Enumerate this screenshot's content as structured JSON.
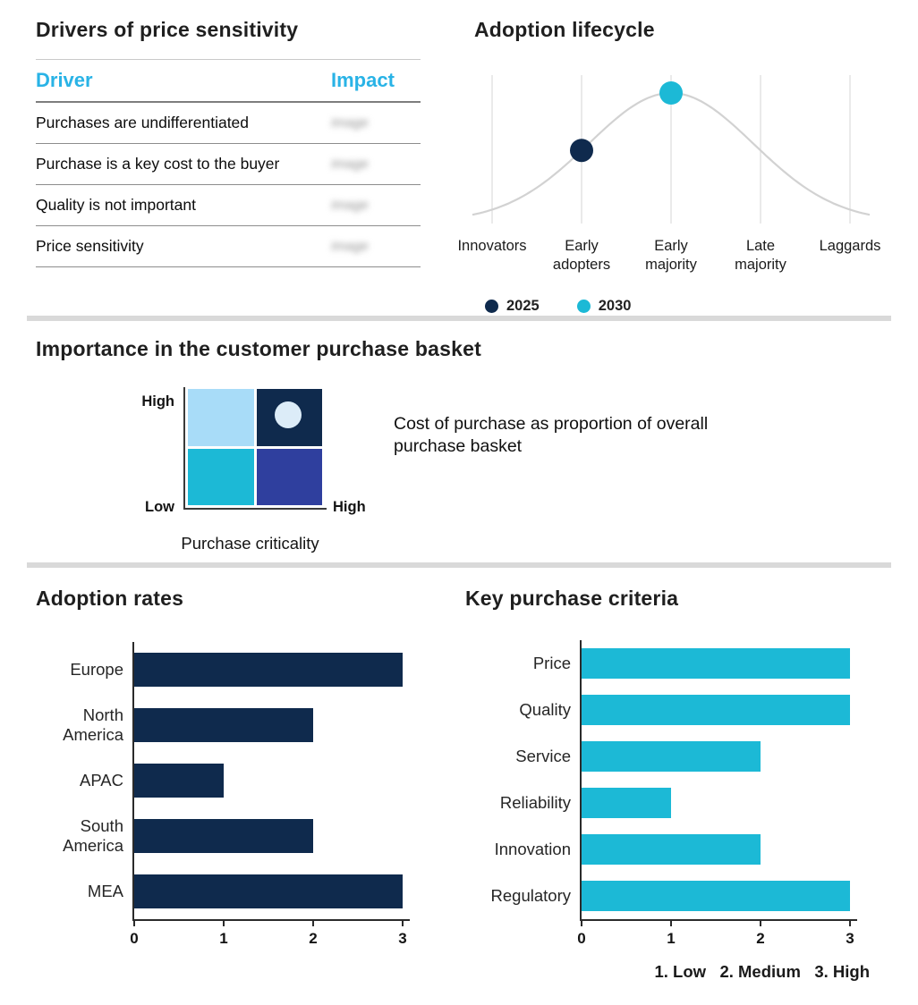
{
  "colors": {
    "navy": "#0f2a4d",
    "cyan": "#1cb9d6",
    "header_cyan": "#29b3e6",
    "sky": "#a8dcf8",
    "indigo": "#2f3f9e",
    "quad_circle": "#dcecf8",
    "curve": "#d2d2d2",
    "grid": "#e2e2e2",
    "divider": "#d9d9d9"
  },
  "basket": {
    "title": "Importance in the customer purchase basket",
    "y_top": "High",
    "y_bottom": "Low",
    "x_right": "High",
    "x_label": "Purchase criticality",
    "annotation": "Cost of purchase as proportion of overall purchase basket"
  },
  "chart_data": [
    {
      "type": "table",
      "title": "Drivers of price sensitivity",
      "columns": [
        "Driver",
        "Impact"
      ],
      "rows": [
        "Purchases are undifferentiated",
        "Purchase is a key cost to the buyer",
        "Quality is not important",
        "Price sensitivity"
      ],
      "impact_placeholder": "Image"
    },
    {
      "type": "line",
      "title": "Adoption lifecycle",
      "x": [
        "Innovators",
        "Early\nadopters",
        "Early\nmajority",
        "Late\nmajority",
        "Laggards"
      ],
      "curve": "bell curve peaking at Early majority",
      "points": [
        {
          "label": "2025",
          "category": "Early adopters",
          "category_index": 1,
          "color_key": "navy"
        },
        {
          "label": "2030",
          "category": "Early majority",
          "category_index": 2,
          "color_key": "cyan"
        }
      ],
      "legend_position": "bottom"
    },
    {
      "type": "heatmap",
      "title": "Importance in the customer purchase basket",
      "xlabel": "Purchase criticality",
      "x_range": [
        "Low",
        "High"
      ],
      "y_range": [
        "Low",
        "High"
      ],
      "quadrants": [
        {
          "position": "top-left",
          "color_key": "sky"
        },
        {
          "position": "top-right",
          "color_key": "navy",
          "marker": "circle"
        },
        {
          "position": "bottom-left",
          "color_key": "cyan"
        },
        {
          "position": "bottom-right",
          "color_key": "indigo"
        }
      ],
      "annotation": "Cost of purchase as proportion of overall purchase basket"
    },
    {
      "type": "bar",
      "orientation": "horizontal",
      "title": "Adoption rates",
      "categories": [
        "Europe",
        "North America",
        "APAC",
        "South America",
        "MEA"
      ],
      "values": [
        3,
        2,
        1,
        2,
        3
      ],
      "xlim": [
        0,
        3
      ],
      "ticks": [
        0,
        1,
        2,
        3
      ],
      "color_key": "navy"
    },
    {
      "type": "bar",
      "orientation": "horizontal",
      "title": "Key purchase criteria",
      "categories": [
        "Price",
        "Quality",
        "Service",
        "Reliability",
        "Innovation",
        "Regulatory"
      ],
      "values": [
        3,
        3,
        2,
        1,
        2,
        3
      ],
      "xlim": [
        0,
        3
      ],
      "ticks": [
        0,
        1,
        2,
        3
      ],
      "color_key": "cyan",
      "note": "1. Low   2. Medium   3. High"
    }
  ]
}
